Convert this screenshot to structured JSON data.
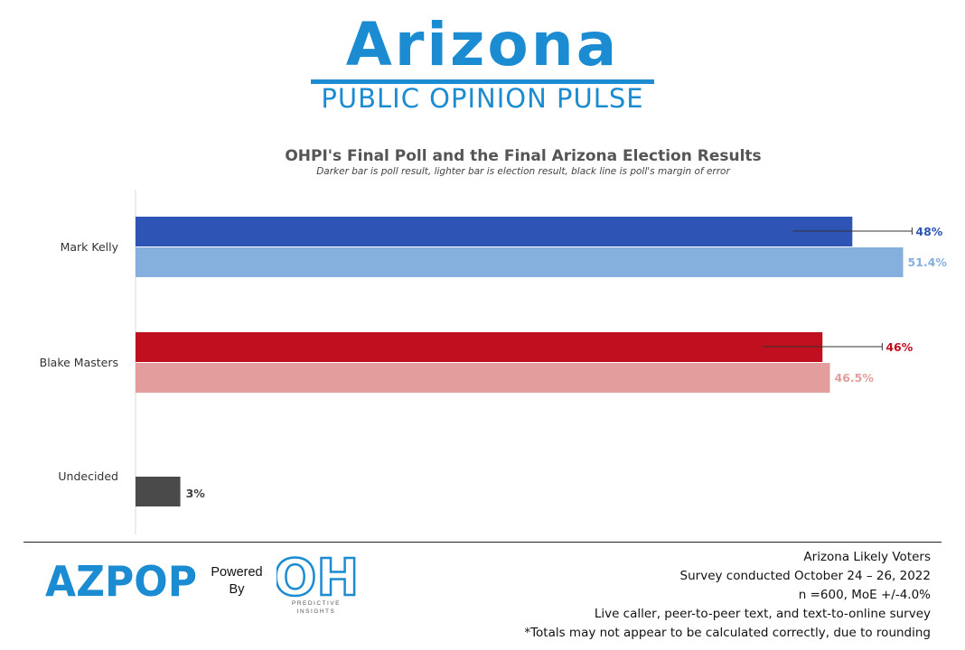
{
  "header": {
    "brand_title": "Arizona",
    "brand_subtitle": "PUBLIC OPINION PULSE"
  },
  "chart_data": {
    "type": "bar",
    "orientation": "horizontal",
    "title": "OHPI's Final Poll and the Final Arizona Election Results",
    "subtitle": "Darker bar is poll result, lighter bar is election result, black line is poll's margin of error",
    "xlim": [
      0,
      55
    ],
    "grid": false,
    "categories": [
      "Mark Kelly",
      "Blake Masters",
      "Undecided"
    ],
    "series": [
      {
        "name": "Poll result",
        "values": [
          48,
          46,
          3
        ],
        "labels": [
          "48%",
          "46%",
          "3%"
        ],
        "colors": [
          "#2e55b6",
          "#c0101f",
          "#4a4a4a"
        ],
        "margin_of_error": 4.0
      },
      {
        "name": "Election result",
        "values": [
          51.4,
          46.5,
          null
        ],
        "labels": [
          "51.4%",
          "46.5%",
          ""
        ],
        "colors": [
          "#85b0de",
          "#e39d9d",
          null
        ]
      }
    ]
  },
  "footer": {
    "logo_text": "AZPOP",
    "powered_line1": "Powered",
    "powered_line2": "By",
    "partner_logo_text": "OH",
    "partner_subtitle_line1": "PREDICTIVE",
    "partner_subtitle_line2": "INSIGHTS",
    "notes": [
      "Arizona Likely Voters",
      "Survey conducted October 24 – 26, 2022",
      "n =600, MoE +/-4.0%",
      "Live caller, peer-to-peer text, and text-to-online survey",
      "*Totals may not appear to be calculated correctly, due to rounding"
    ]
  },
  "colors": {
    "brand": "#1b8bd2",
    "axis": "#d9d9d9",
    "error_bar": "#333333"
  }
}
